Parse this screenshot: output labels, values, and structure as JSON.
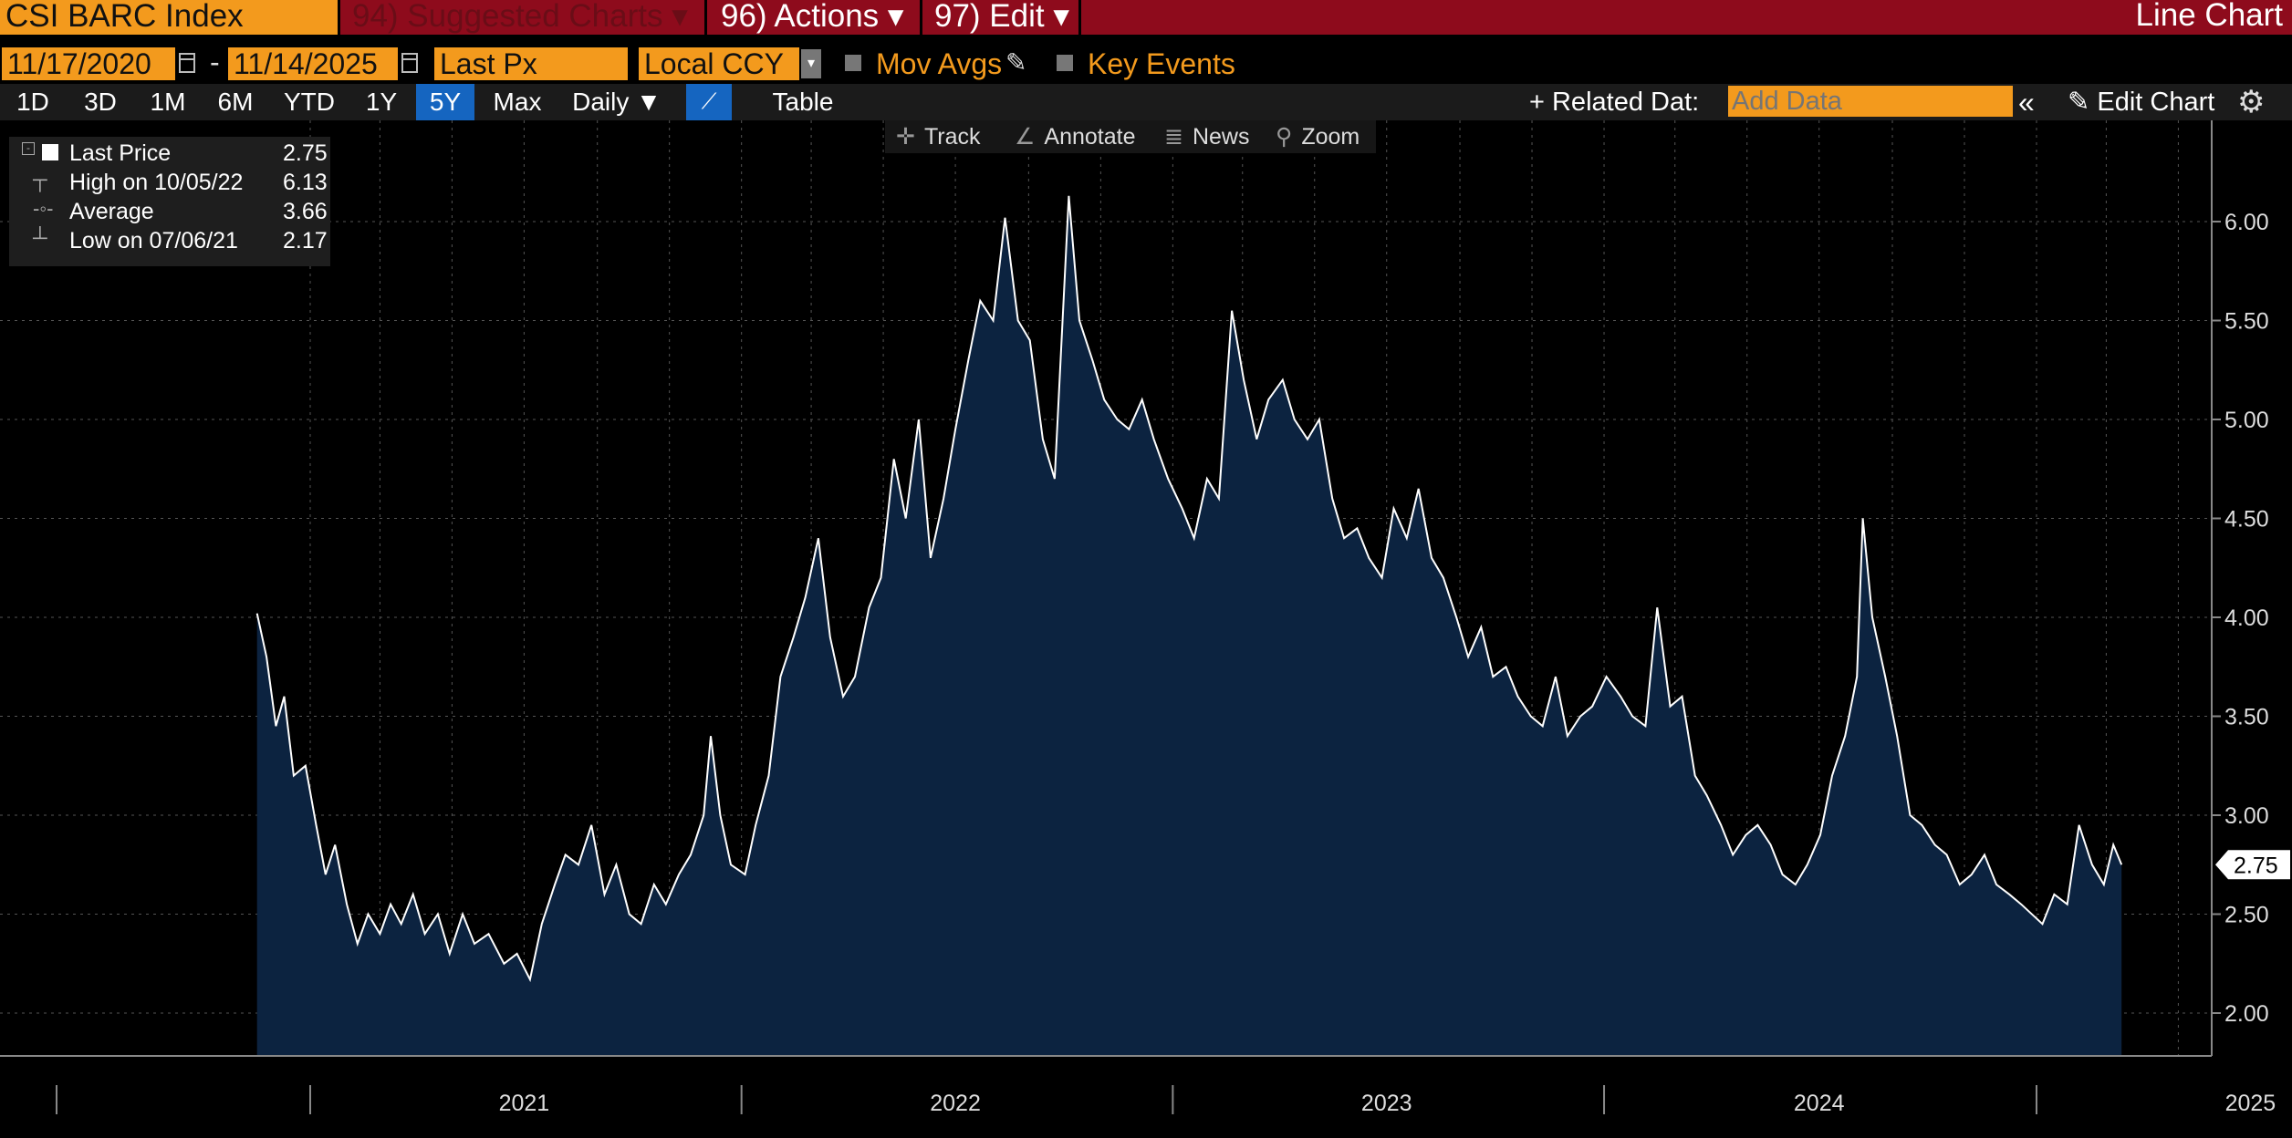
{
  "topbar": {
    "ticker": "CSI BARC Index",
    "suggested": "94) Suggested Charts",
    "actions": "96) Actions",
    "edit": "97) Edit",
    "chart_type": "Line Chart",
    "caret": "▾"
  },
  "controls": {
    "start_date": "11/17/2020",
    "date_sep": "-",
    "end_date": "11/14/2025",
    "field": "Last Px",
    "currency": "Local CCY",
    "mov_avgs": "Mov Avgs",
    "key_events": "Key Events"
  },
  "toolbar": {
    "periods": [
      "1D",
      "3D",
      "1M",
      "6M",
      "YTD",
      "1Y",
      "5Y",
      "Max"
    ],
    "active_period": "5Y",
    "frequency": "Daily ▼",
    "table": "Table",
    "related_data": "+ Related Dat:",
    "add_data_placeholder": "Add Data",
    "collapse": "«",
    "edit_chart": "Edit Chart"
  },
  "tools": {
    "track": "Track",
    "annotate": "Annotate",
    "news": "News",
    "zoom": "Zoom"
  },
  "legend": {
    "last_price_label": "Last Price",
    "last_price_value": "2.75",
    "high_label": "High on 10/05/22",
    "high_value": "6.13",
    "average_label": "Average",
    "average_value": "3.66",
    "low_label": "Low on 07/06/21",
    "low_value": "2.17"
  },
  "colors": {
    "accent_orange": "#f39a1d",
    "topbar_red": "#8e0b1c",
    "area_fill": "#0c2340",
    "line": "#ffffff",
    "active_blue": "#1565c0"
  },
  "chart_data": {
    "type": "area",
    "title": "",
    "xlabel": "",
    "ylabel": "",
    "ylim": [
      1.8,
      6.5
    ],
    "y_ticks": [
      "2.00",
      "2.50",
      "3.00",
      "3.50",
      "4.00",
      "4.50",
      "5.00",
      "5.50",
      "6.00"
    ],
    "x_year_labels": [
      "2021",
      "2022",
      "2023",
      "2024",
      "2025"
    ],
    "last_value_label": "2.75",
    "grid": true,
    "series": [
      {
        "values": [
          [
            "2020-11-17",
            4.02
          ],
          [
            "2020-11-25",
            3.8
          ],
          [
            "2020-12-03",
            3.45
          ],
          [
            "2020-12-10",
            3.6
          ],
          [
            "2020-12-18",
            3.2
          ],
          [
            "2020-12-28",
            3.25
          ],
          [
            "2021-01-06",
            2.95
          ],
          [
            "2021-01-14",
            2.7
          ],
          [
            "2021-01-22",
            2.85
          ],
          [
            "2021-02-01",
            2.55
          ],
          [
            "2021-02-10",
            2.35
          ],
          [
            "2021-02-19",
            2.5
          ],
          [
            "2021-03-01",
            2.4
          ],
          [
            "2021-03-10",
            2.55
          ],
          [
            "2021-03-19",
            2.45
          ],
          [
            "2021-03-29",
            2.6
          ],
          [
            "2021-04-08",
            2.4
          ],
          [
            "2021-04-19",
            2.5
          ],
          [
            "2021-04-29",
            2.3
          ],
          [
            "2021-05-10",
            2.5
          ],
          [
            "2021-05-20",
            2.35
          ],
          [
            "2021-06-01",
            2.4
          ],
          [
            "2021-06-14",
            2.25
          ],
          [
            "2021-06-25",
            2.3
          ],
          [
            "2021-07-06",
            2.17
          ],
          [
            "2021-07-16",
            2.45
          ],
          [
            "2021-07-27",
            2.65
          ],
          [
            "2021-08-05",
            2.8
          ],
          [
            "2021-08-16",
            2.75
          ],
          [
            "2021-08-27",
            2.95
          ],
          [
            "2021-09-07",
            2.6
          ],
          [
            "2021-09-17",
            2.75
          ],
          [
            "2021-09-28",
            2.5
          ],
          [
            "2021-10-08",
            2.45
          ],
          [
            "2021-10-19",
            2.65
          ],
          [
            "2021-10-29",
            2.55
          ],
          [
            "2021-11-09",
            2.7
          ],
          [
            "2021-11-19",
            2.8
          ],
          [
            "2021-11-30",
            3.0
          ],
          [
            "2021-12-06",
            3.4
          ],
          [
            "2021-12-14",
            3.0
          ],
          [
            "2021-12-23",
            2.75
          ],
          [
            "2022-01-04",
            2.7
          ],
          [
            "2022-01-13",
            2.95
          ],
          [
            "2022-01-24",
            3.2
          ],
          [
            "2022-02-03",
            3.7
          ],
          [
            "2022-02-14",
            3.9
          ],
          [
            "2022-02-24",
            4.1
          ],
          [
            "2022-03-07",
            4.4
          ],
          [
            "2022-03-17",
            3.9
          ],
          [
            "2022-03-28",
            3.6
          ],
          [
            "2022-04-07",
            3.7
          ],
          [
            "2022-04-19",
            4.05
          ],
          [
            "2022-04-29",
            4.2
          ],
          [
            "2022-05-10",
            4.8
          ],
          [
            "2022-05-20",
            4.5
          ],
          [
            "2022-05-31",
            5.0
          ],
          [
            "2022-06-10",
            4.3
          ],
          [
            "2022-06-21",
            4.6
          ],
          [
            "2022-07-01",
            4.95
          ],
          [
            "2022-07-12",
            5.3
          ],
          [
            "2022-07-22",
            5.6
          ],
          [
            "2022-08-02",
            5.5
          ],
          [
            "2022-08-12",
            6.02
          ],
          [
            "2022-08-23",
            5.5
          ],
          [
            "2022-09-02",
            5.4
          ],
          [
            "2022-09-13",
            4.9
          ],
          [
            "2022-09-23",
            4.7
          ],
          [
            "2022-10-05",
            6.13
          ],
          [
            "2022-10-14",
            5.5
          ],
          [
            "2022-10-25",
            5.3
          ],
          [
            "2022-11-04",
            5.1
          ],
          [
            "2022-11-15",
            5.0
          ],
          [
            "2022-11-25",
            4.95
          ],
          [
            "2022-12-06",
            5.1
          ],
          [
            "2022-12-16",
            4.9
          ],
          [
            "2022-12-28",
            4.7
          ],
          [
            "2023-01-09",
            4.55
          ],
          [
            "2023-01-19",
            4.4
          ],
          [
            "2023-01-30",
            4.7
          ],
          [
            "2023-02-09",
            4.6
          ],
          [
            "2023-02-20",
            5.55
          ],
          [
            "2023-03-02",
            5.2
          ],
          [
            "2023-03-13",
            4.9
          ],
          [
            "2023-03-23",
            5.1
          ],
          [
            "2023-04-04",
            5.2
          ],
          [
            "2023-04-14",
            5.0
          ],
          [
            "2023-04-25",
            4.9
          ],
          [
            "2023-05-05",
            5.0
          ],
          [
            "2023-05-16",
            4.6
          ],
          [
            "2023-05-26",
            4.4
          ],
          [
            "2023-06-06",
            4.45
          ],
          [
            "2023-06-16",
            4.3
          ],
          [
            "2023-06-27",
            4.2
          ],
          [
            "2023-07-07",
            4.55
          ],
          [
            "2023-07-18",
            4.4
          ],
          [
            "2023-07-28",
            4.65
          ],
          [
            "2023-08-08",
            4.3
          ],
          [
            "2023-08-18",
            4.2
          ],
          [
            "2023-08-29",
            4.0
          ],
          [
            "2023-09-08",
            3.8
          ],
          [
            "2023-09-19",
            3.95
          ],
          [
            "2023-09-29",
            3.7
          ],
          [
            "2023-10-10",
            3.75
          ],
          [
            "2023-10-20",
            3.6
          ],
          [
            "2023-10-31",
            3.5
          ],
          [
            "2023-11-10",
            3.45
          ],
          [
            "2023-11-21",
            3.7
          ],
          [
            "2023-12-01",
            3.4
          ],
          [
            "2023-12-12",
            3.5
          ],
          [
            "2023-12-22",
            3.55
          ],
          [
            "2024-01-03",
            3.7
          ],
          [
            "2024-01-15",
            3.6
          ],
          [
            "2024-01-25",
            3.5
          ],
          [
            "2024-02-05",
            3.45
          ],
          [
            "2024-02-15",
            4.05
          ],
          [
            "2024-02-26",
            3.55
          ],
          [
            "2024-03-07",
            3.6
          ],
          [
            "2024-03-18",
            3.2
          ],
          [
            "2024-03-28",
            3.1
          ],
          [
            "2024-04-09",
            2.95
          ],
          [
            "2024-04-19",
            2.8
          ],
          [
            "2024-04-30",
            2.9
          ],
          [
            "2024-05-10",
            2.95
          ],
          [
            "2024-05-21",
            2.85
          ],
          [
            "2024-05-31",
            2.7
          ],
          [
            "2024-06-11",
            2.65
          ],
          [
            "2024-06-21",
            2.75
          ],
          [
            "2024-07-02",
            2.9
          ],
          [
            "2024-07-12",
            3.2
          ],
          [
            "2024-07-23",
            3.4
          ],
          [
            "2024-08-02",
            3.7
          ],
          [
            "2024-08-07",
            4.5
          ],
          [
            "2024-08-15",
            4.0
          ],
          [
            "2024-08-26",
            3.7
          ],
          [
            "2024-09-05",
            3.4
          ],
          [
            "2024-09-16",
            3.0
          ],
          [
            "2024-09-26",
            2.95
          ],
          [
            "2024-10-07",
            2.85
          ],
          [
            "2024-10-17",
            2.8
          ],
          [
            "2024-10-28",
            2.65
          ],
          [
            "2024-11-07",
            2.7
          ],
          [
            "2024-11-18",
            2.8
          ],
          [
            "2024-11-28",
            2.65
          ],
          [
            "2024-12-09",
            2.6
          ],
          [
            "2024-12-19",
            2.55
          ],
          [
            "2025-01-06",
            2.45
          ],
          [
            "2025-01-16",
            2.6
          ],
          [
            "2025-01-27",
            2.55
          ],
          [
            "2025-02-06",
            2.95
          ],
          [
            "2025-02-17",
            2.75
          ],
          [
            "2025-02-27",
            2.65
          ],
          [
            "2025-03-07",
            2.85
          ],
          [
            "2025-03-14",
            2.75
          ]
        ]
      }
    ]
  }
}
